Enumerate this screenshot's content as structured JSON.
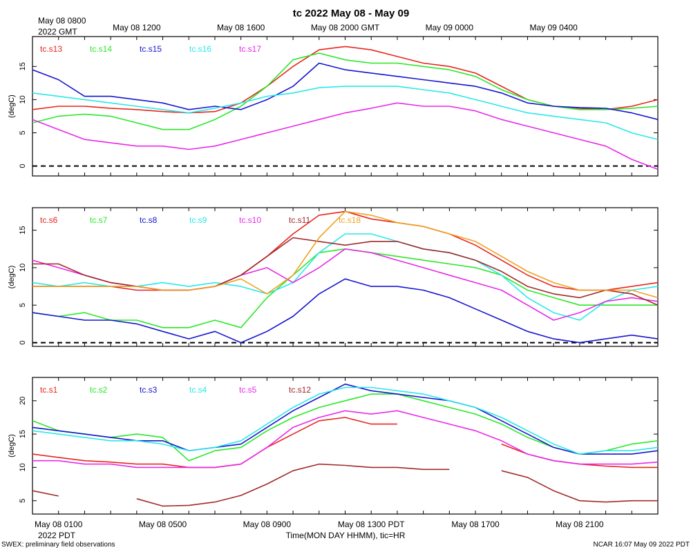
{
  "page": {
    "title": "tc 2022 May 08 - May 09",
    "top_axis_first_label": "May 08 0800",
    "top_axis_zone": "2022 GMT",
    "bottom_axis_zone": "2022 PDT",
    "xlabel": "Time(MON DAY HHMM), tic=HR",
    "footer_left": "SWEX: preliminary field observations",
    "footer_right": "NCAR 16:07 May 09 2022 PDT"
  },
  "colors": {
    "red": "#e8241c",
    "green": "#28e828",
    "blue": "#1414d0",
    "cyan": "#28e8e8",
    "magenta": "#e828e8",
    "brown": "#a02828",
    "orange": "#f0a020"
  },
  "chart_data": [
    {
      "type": "line",
      "ylabel": "(degC)",
      "xlim": [
        0,
        24
      ],
      "ylim": [
        -1.5,
        19.5
      ],
      "yticks": [
        0,
        5,
        10,
        15
      ],
      "zero_line": true,
      "top_ticks": [
        {
          "x": 4,
          "label": "May 08 1200"
        },
        {
          "x": 8,
          "label": "May 08 1600"
        },
        {
          "x": 12,
          "label": "May 08 2000 GMT"
        },
        {
          "x": 16,
          "label": "May 09 0000"
        },
        {
          "x": 20,
          "label": "May 09 0400"
        }
      ],
      "series": [
        {
          "name": "tc.s13",
          "color": "#e8241c",
          "x": [
            0,
            1,
            2,
            3,
            4,
            5,
            6,
            7,
            8,
            9,
            10,
            11,
            12,
            13,
            14,
            15,
            16,
            17,
            18,
            19,
            20,
            21,
            22,
            23,
            24
          ],
          "y": [
            8.5,
            9.0,
            9.0,
            8.7,
            8.5,
            8.2,
            8.0,
            8.2,
            9.5,
            12.0,
            15.0,
            17.5,
            18.0,
            17.5,
            16.5,
            15.5,
            15.0,
            14.0,
            12.0,
            10.0,
            9.0,
            8.7,
            8.5,
            9.0,
            10.0
          ]
        },
        {
          "name": "tc.s14",
          "color": "#28e828",
          "x": [
            0,
            1,
            2,
            3,
            4,
            5,
            6,
            7,
            8,
            9,
            10,
            11,
            12,
            13,
            14,
            15,
            16,
            17,
            18,
            19,
            20,
            21,
            22,
            23,
            24
          ],
          "y": [
            6.5,
            7.5,
            7.8,
            7.5,
            6.5,
            5.5,
            5.5,
            7.0,
            9.0,
            12.0,
            16.0,
            17.0,
            16.0,
            15.5,
            15.5,
            15.0,
            14.5,
            13.5,
            11.5,
            10.0,
            9.0,
            8.5,
            8.5,
            8.7,
            9.0
          ]
        },
        {
          "name": "tc.s15",
          "color": "#1414d0",
          "x": [
            0,
            1,
            2,
            3,
            4,
            5,
            6,
            7,
            8,
            9,
            10,
            11,
            12,
            13,
            14,
            15,
            16,
            17,
            18,
            19,
            20,
            21,
            22,
            23,
            24
          ],
          "y": [
            14.5,
            13.0,
            10.5,
            10.5,
            10.0,
            9.5,
            8.5,
            9.0,
            8.5,
            10.0,
            12.0,
            15.5,
            14.5,
            14.0,
            13.5,
            13.0,
            12.5,
            12.0,
            11.0,
            9.5,
            9.0,
            8.8,
            8.7,
            8.0,
            7.0
          ]
        },
        {
          "name": "tc.s16",
          "color": "#28e8e8",
          "x": [
            0,
            1,
            2,
            3,
            4,
            5,
            6,
            7,
            8,
            9,
            10,
            11,
            12,
            13,
            14,
            15,
            16,
            17,
            18,
            19,
            20,
            21,
            22,
            23,
            24
          ],
          "y": [
            11.0,
            10.5,
            10.0,
            9.5,
            9.0,
            8.5,
            8.0,
            8.7,
            9.5,
            10.5,
            11.0,
            11.8,
            12.0,
            12.0,
            12.0,
            11.5,
            11.0,
            10.0,
            9.0,
            8.0,
            7.5,
            7.0,
            6.5,
            5.0,
            4.0
          ]
        },
        {
          "name": "tc.s17",
          "color": "#e828e8",
          "x": [
            0,
            1,
            2,
            3,
            4,
            5,
            6,
            7,
            8,
            9,
            10,
            11,
            12,
            13,
            14,
            15,
            16,
            17,
            18,
            19,
            20,
            21,
            22,
            23,
            24
          ],
          "y": [
            7.0,
            5.5,
            4.0,
            3.5,
            3.0,
            3.0,
            2.5,
            3.0,
            4.0,
            5.0,
            6.0,
            7.0,
            8.0,
            8.7,
            9.5,
            9.0,
            9.0,
            8.3,
            7.0,
            6.0,
            5.0,
            4.0,
            3.0,
            1.0,
            -0.5
          ]
        }
      ]
    },
    {
      "type": "line",
      "ylabel": "(degC)",
      "xlim": [
        0,
        24
      ],
      "ylim": [
        -0.5,
        18.0
      ],
      "yticks": [
        0,
        5,
        10,
        15
      ],
      "zero_line": true,
      "series": [
        {
          "name": "tc.s6",
          "color": "#e8241c",
          "x": [
            0,
            1,
            2,
            3,
            4,
            5,
            6,
            7,
            8,
            9,
            10,
            11,
            12,
            13,
            14,
            15,
            16,
            17,
            18,
            19,
            20,
            21,
            22,
            23,
            24
          ],
          "y": [
            7.5,
            7.5,
            7.5,
            7.5,
            7.0,
            7.0,
            7.0,
            7.5,
            9.0,
            11.5,
            14.5,
            17.0,
            17.5,
            16.5,
            16.0,
            15.5,
            14.5,
            13.0,
            11.0,
            9.0,
            7.5,
            7.0,
            7.0,
            7.5,
            8.0
          ]
        },
        {
          "name": "tc.s7",
          "color": "#28e828",
          "x": [
            0,
            1,
            2,
            3,
            4,
            5,
            6,
            7,
            8,
            9,
            10,
            11,
            12,
            13,
            14,
            15,
            16,
            17,
            18,
            19,
            20,
            21,
            22,
            23,
            24
          ],
          "y": [
            4.0,
            3.5,
            4.0,
            3.0,
            3.0,
            2.0,
            2.0,
            3.0,
            2.0,
            6.0,
            9.0,
            12.0,
            12.5,
            12.0,
            11.5,
            11.0,
            10.5,
            10.0,
            9.0,
            7.0,
            6.0,
            5.0,
            5.0,
            5.0,
            5.0
          ]
        },
        {
          "name": "tc.s8",
          "color": "#1414d0",
          "x": [
            0,
            1,
            2,
            3,
            4,
            5,
            6,
            7,
            8,
            9,
            10,
            11,
            12,
            13,
            14,
            15,
            16,
            17,
            18,
            19,
            20,
            21,
            22,
            23,
            24
          ],
          "y": [
            4.0,
            3.5,
            3.0,
            3.0,
            2.5,
            1.5,
            0.5,
            1.5,
            0.0,
            1.5,
            3.5,
            6.5,
            8.5,
            7.5,
            7.5,
            7.0,
            6.0,
            4.5,
            3.0,
            1.5,
            0.5,
            0.0,
            0.5,
            1.0,
            0.5
          ]
        },
        {
          "name": "tc.s9",
          "color": "#28e8e8",
          "x": [
            0,
            1,
            2,
            3,
            4,
            5,
            6,
            7,
            8,
            9,
            10,
            11,
            12,
            13,
            14,
            15,
            16,
            17,
            18,
            19,
            20,
            21,
            22,
            23,
            24
          ],
          "y": [
            8.0,
            7.5,
            8.0,
            7.5,
            7.5,
            8.0,
            7.5,
            8.0,
            7.5,
            6.5,
            8.0,
            12.0,
            14.5,
            14.5,
            13.5,
            12.5,
            12.0,
            11.0,
            9.0,
            6.0,
            4.0,
            3.0,
            5.5,
            7.0,
            7.5
          ]
        },
        {
          "name": "tc.s10",
          "color": "#e828e8",
          "x": [
            0,
            1,
            2,
            3,
            4,
            5,
            6,
            7,
            8,
            9,
            10,
            11,
            12,
            13,
            14,
            15,
            16,
            17,
            18,
            19,
            20,
            21,
            22,
            23,
            24
          ],
          "y": [
            11.0,
            10.0,
            9.0,
            8.0,
            7.5,
            7.0,
            7.0,
            7.5,
            9.0,
            10.0,
            8.0,
            10.0,
            12.5,
            12.0,
            11.0,
            10.0,
            9.0,
            8.0,
            7.0,
            5.0,
            3.0,
            4.0,
            5.5,
            6.0,
            5.5
          ]
        },
        {
          "name": "tc.s11",
          "color": "#a02828",
          "x": [
            0,
            1,
            2,
            3,
            4,
            5,
            6,
            7,
            8,
            9,
            10,
            11,
            12,
            13,
            14,
            15,
            16,
            17,
            18,
            19,
            20,
            21,
            22,
            23,
            24
          ],
          "y": [
            10.5,
            10.5,
            9.0,
            8.0,
            7.5,
            7.0,
            7.0,
            7.5,
            9.0,
            11.5,
            14.0,
            13.5,
            13.0,
            13.5,
            13.5,
            12.5,
            12.0,
            11.0,
            9.5,
            7.5,
            6.5,
            6.0,
            7.0,
            6.5,
            5.0
          ]
        },
        {
          "name": "tc.s18",
          "color": "#f0a020",
          "x": [
            0,
            1,
            2,
            3,
            4,
            5,
            6,
            7,
            8,
            9,
            10,
            11,
            12,
            13,
            14,
            15,
            16,
            17,
            18,
            19,
            20,
            21,
            22,
            23,
            24
          ],
          "y": [
            7.5,
            7.5,
            7.5,
            7.5,
            7.5,
            7.0,
            7.0,
            7.5,
            8.5,
            6.5,
            9.0,
            14.0,
            17.5,
            17.0,
            16.0,
            15.5,
            14.5,
            13.5,
            11.5,
            9.5,
            8.0,
            7.0,
            7.0,
            7.0,
            6.0
          ]
        }
      ]
    },
    {
      "type": "line",
      "ylabel": "(degC)",
      "xlim": [
        0,
        24
      ],
      "ylim": [
        3.0,
        23.5
      ],
      "yticks": [
        5,
        10,
        15,
        20
      ],
      "zero_line": false,
      "bottom_ticks": [
        {
          "x": 1,
          "label": "May 08 0100"
        },
        {
          "x": 5,
          "label": "May 08 0500"
        },
        {
          "x": 9,
          "label": "May 08 0900"
        },
        {
          "x": 13,
          "label": "May 08 1300 PDT"
        },
        {
          "x": 17,
          "label": "May 08 1700"
        },
        {
          "x": 21,
          "label": "May 08 2100"
        }
      ],
      "series": [
        {
          "name": "tc.s1",
          "color": "#e8241c",
          "x": [
            0,
            1,
            2,
            3,
            4,
            5,
            6,
            7,
            8,
            9,
            10,
            11,
            12,
            13,
            14,
            15,
            16,
            17,
            18,
            19,
            20,
            21,
            22,
            23,
            24
          ],
          "y": [
            12.0,
            11.5,
            11.0,
            10.8,
            10.5,
            10.5,
            10.0,
            10.0,
            10.5,
            13.0,
            15.0,
            17.0,
            17.5,
            16.5,
            16.5,
            null,
            null,
            null,
            13.5,
            12.0,
            11.0,
            10.5,
            10.2,
            10.0,
            10.0
          ]
        },
        {
          "name": "tc.s2",
          "color": "#28e828",
          "x": [
            0,
            1,
            2,
            3,
            4,
            5,
            6,
            7,
            8,
            9,
            10,
            11,
            12,
            13,
            14,
            15,
            16,
            17,
            18,
            19,
            20,
            21,
            22,
            23,
            24
          ],
          "y": [
            17.0,
            15.5,
            15.0,
            14.5,
            15.0,
            14.5,
            11.0,
            12.5,
            13.0,
            15.5,
            17.5,
            19.0,
            20.0,
            21.0,
            21.0,
            20.0,
            19.0,
            18.0,
            16.5,
            14.5,
            13.0,
            12.0,
            12.5,
            13.5,
            14.0
          ]
        },
        {
          "name": "tc.s3",
          "color": "#1414d0",
          "x": [
            0,
            1,
            2,
            3,
            4,
            5,
            6,
            7,
            8,
            9,
            10,
            11,
            12,
            13,
            14,
            15,
            16,
            17,
            18,
            19,
            20,
            21,
            22,
            23,
            24
          ],
          "y": [
            16.0,
            15.5,
            15.0,
            14.5,
            14.0,
            14.0,
            12.5,
            13.0,
            13.5,
            16.0,
            18.5,
            20.5,
            22.5,
            21.5,
            21.0,
            20.5,
            20.0,
            19.0,
            17.0,
            15.0,
            13.0,
            12.0,
            12.0,
            12.0,
            12.5
          ]
        },
        {
          "name": "tc.s4",
          "color": "#28e8e8",
          "x": [
            0,
            1,
            2,
            3,
            4,
            5,
            6,
            7,
            8,
            9,
            10,
            11,
            12,
            13,
            14,
            15,
            16,
            17,
            18,
            19,
            20,
            21,
            22,
            23,
            24
          ],
          "y": [
            15.5,
            15.0,
            14.5,
            14.0,
            14.0,
            13.5,
            12.5,
            13.0,
            14.0,
            16.5,
            19.0,
            21.0,
            22.0,
            22.0,
            21.5,
            21.0,
            20.0,
            19.0,
            17.5,
            15.5,
            13.5,
            12.0,
            12.5,
            12.5,
            13.0
          ]
        },
        {
          "name": "tc.s5",
          "color": "#e828e8",
          "x": [
            0,
            1,
            2,
            3,
            4,
            5,
            6,
            7,
            8,
            9,
            10,
            11,
            12,
            13,
            14,
            15,
            16,
            17,
            18,
            19,
            20,
            21,
            22,
            23,
            24
          ],
          "y": [
            11.0,
            11.0,
            10.5,
            10.5,
            10.0,
            10.0,
            10.0,
            10.0,
            10.5,
            13.0,
            16.0,
            17.5,
            18.5,
            18.0,
            18.5,
            17.5,
            16.5,
            15.5,
            14.0,
            12.0,
            11.0,
            10.5,
            10.5,
            10.5,
            10.8
          ]
        },
        {
          "name": "tc.s12",
          "color": "#a02828",
          "x": [
            0,
            1,
            2,
            3,
            4,
            5,
            6,
            7,
            8,
            9,
            10,
            11,
            12,
            13,
            14,
            15,
            16,
            17,
            18,
            19,
            20,
            21,
            22,
            23,
            24
          ],
          "y": [
            6.5,
            5.7,
            null,
            null,
            5.3,
            4.2,
            4.3,
            4.8,
            5.8,
            7.5,
            9.5,
            10.5,
            10.3,
            10.0,
            10.0,
            9.7,
            9.7,
            null,
            9.5,
            8.5,
            6.5,
            5.0,
            4.8,
            5.0,
            5.0
          ]
        }
      ]
    }
  ]
}
